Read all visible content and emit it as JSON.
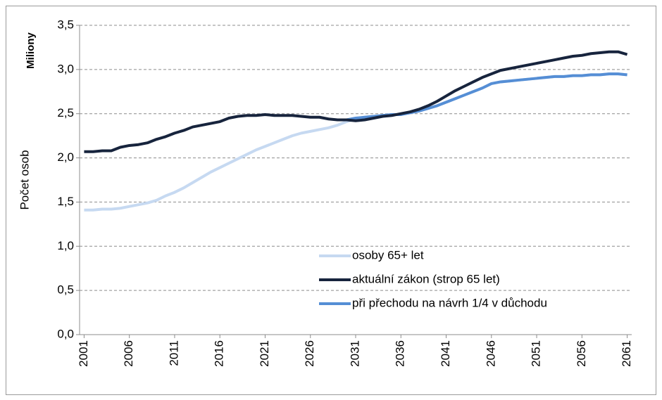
{
  "chart_data": {
    "type": "line",
    "y_label": "Počet osob",
    "unit_label": "Miliony",
    "x": [
      2001,
      2002,
      2003,
      2004,
      2005,
      2006,
      2007,
      2008,
      2009,
      2010,
      2011,
      2012,
      2013,
      2014,
      2015,
      2016,
      2017,
      2018,
      2019,
      2020,
      2021,
      2022,
      2023,
      2024,
      2025,
      2026,
      2027,
      2028,
      2029,
      2030,
      2031,
      2032,
      2033,
      2034,
      2035,
      2036,
      2037,
      2038,
      2039,
      2040,
      2041,
      2042,
      2043,
      2044,
      2045,
      2046,
      2047,
      2048,
      2049,
      2050,
      2051,
      2052,
      2053,
      2054,
      2055,
      2056,
      2057,
      2058,
      2059,
      2060,
      2061
    ],
    "series": [
      {
        "name": "osoby 65+ let",
        "color": "#c6d9f1",
        "values": [
          1.41,
          1.41,
          1.42,
          1.42,
          1.43,
          1.45,
          1.47,
          1.49,
          1.52,
          1.57,
          1.61,
          1.66,
          1.72,
          1.78,
          1.84,
          1.89,
          1.94,
          1.99,
          2.04,
          2.09,
          2.13,
          2.17,
          2.21,
          2.25,
          2.28,
          2.3,
          2.32,
          2.34,
          2.37,
          2.41,
          2.44,
          2.46,
          2.47,
          2.48,
          2.49,
          2.49,
          2.51,
          2.53,
          2.56,
          2.59,
          2.63,
          2.67,
          2.71,
          2.75,
          2.79,
          2.84,
          2.86,
          2.87,
          2.88,
          2.89,
          2.9,
          2.91,
          2.92,
          2.92,
          2.93,
          2.93,
          2.94,
          2.94,
          2.95,
          2.95,
          2.94
        ]
      },
      {
        "name": "aktuální zákon (strop 65 let)",
        "color": "#17243d",
        "values": [
          2.07,
          2.07,
          2.08,
          2.08,
          2.12,
          2.14,
          2.15,
          2.17,
          2.21,
          2.24,
          2.28,
          2.31,
          2.35,
          2.37,
          2.39,
          2.41,
          2.45,
          2.47,
          2.48,
          2.48,
          2.49,
          2.48,
          2.48,
          2.48,
          2.47,
          2.46,
          2.46,
          2.44,
          2.43,
          2.43,
          2.42,
          2.43,
          2.45,
          2.47,
          2.48,
          2.5,
          2.52,
          2.55,
          2.59,
          2.64,
          2.7,
          2.76,
          2.81,
          2.86,
          2.91,
          2.95,
          2.99,
          3.01,
          3.03,
          3.05,
          3.07,
          3.09,
          3.11,
          3.13,
          3.15,
          3.16,
          3.18,
          3.19,
          3.2,
          3.2,
          3.17
        ]
      },
      {
        "name": "při přechodu na návrh 1/4 v důchodu",
        "color": "#558ed5",
        "values": [
          null,
          null,
          null,
          null,
          null,
          null,
          null,
          null,
          null,
          null,
          null,
          null,
          null,
          null,
          null,
          null,
          null,
          null,
          null,
          null,
          null,
          null,
          null,
          null,
          null,
          null,
          null,
          null,
          null,
          2.43,
          2.45,
          2.46,
          2.47,
          2.48,
          2.49,
          2.49,
          2.51,
          2.53,
          2.56,
          2.59,
          2.63,
          2.67,
          2.71,
          2.75,
          2.79,
          2.84,
          2.86,
          2.87,
          2.88,
          2.89,
          2.9,
          2.91,
          2.92,
          2.92,
          2.93,
          2.93,
          2.94,
          2.94,
          2.95,
          2.95,
          2.94
        ]
      }
    ],
    "xlim": [
      2000.5,
      2061.5
    ],
    "xticks": [
      2001,
      2006,
      2011,
      2016,
      2021,
      2026,
      2031,
      2036,
      2041,
      2046,
      2051,
      2056,
      2061
    ],
    "ylim": [
      0,
      3.5
    ],
    "yticks": [
      {
        "value": 0,
        "label": "0,0"
      },
      {
        "value": 0.5,
        "label": "0,5"
      },
      {
        "value": 1,
        "label": "1,0"
      },
      {
        "value": 1.5,
        "label": "1,5"
      },
      {
        "value": 2,
        "label": "2,0"
      },
      {
        "value": 2.5,
        "label": "2,5"
      },
      {
        "value": 3,
        "label": "3,0"
      },
      {
        "value": 3.5,
        "label": "3,5"
      }
    ],
    "grid": true,
    "legend": "bottom-center"
  }
}
